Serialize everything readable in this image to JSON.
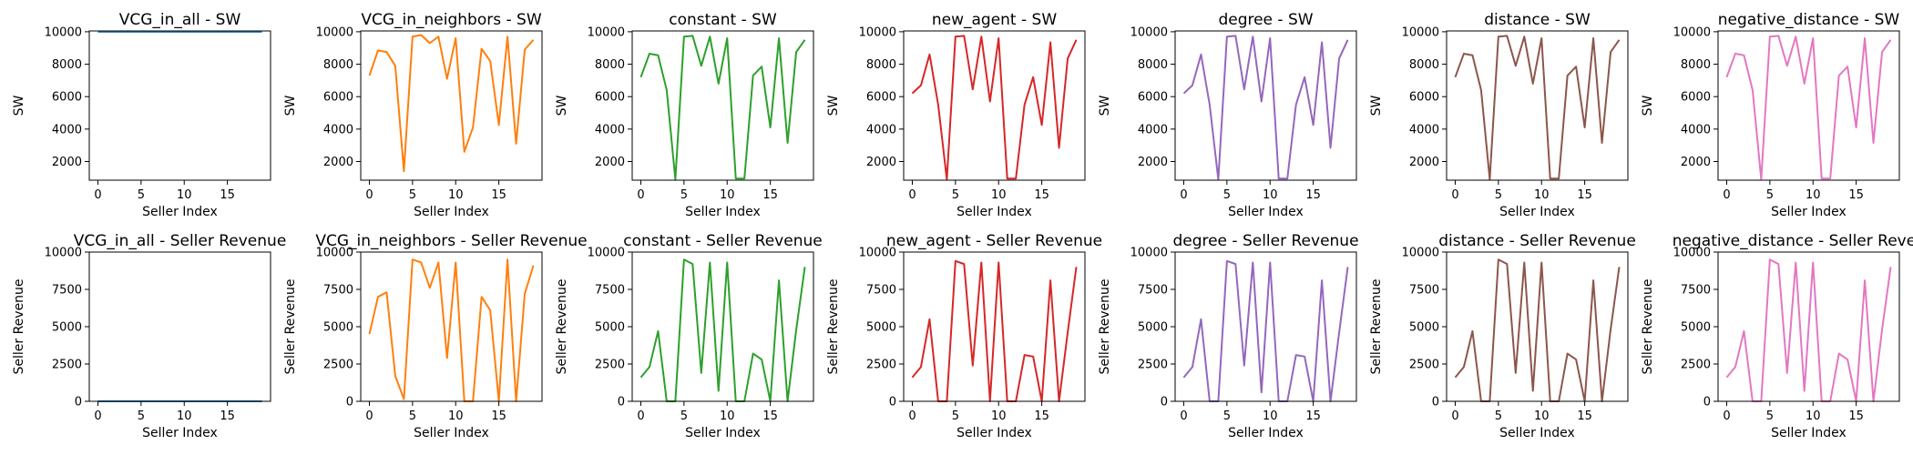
{
  "chart_data": [
    {
      "type": "line",
      "title": "VCG_in_all - SW",
      "xlabel": "Seller Index",
      "ylabel": "SW",
      "xlim": [
        -1,
        20
      ],
      "ylim": [
        850,
        10050
      ],
      "xticks": [
        0,
        5,
        10,
        15
      ],
      "yticks": [
        2000,
        4000,
        6000,
        8000,
        10000
      ],
      "color": "#1f77b4",
      "x": [
        0,
        1,
        2,
        3,
        4,
        5,
        6,
        7,
        8,
        9,
        10,
        11,
        12,
        13,
        14,
        15,
        16,
        17,
        18,
        19
      ],
      "values": [
        10000,
        10000,
        10000,
        10000,
        10000,
        10000,
        10000,
        10000,
        10000,
        10000,
        10000,
        10000,
        10000,
        10000,
        10000,
        10000,
        10000,
        10000,
        10000,
        10000
      ]
    },
    {
      "type": "line",
      "title": "VCG_in_neighbors - SW",
      "xlabel": "Seller Index",
      "ylabel": "SW",
      "xlim": [
        -1,
        20
      ],
      "ylim": [
        850,
        10050
      ],
      "xticks": [
        0,
        5,
        10,
        15
      ],
      "yticks": [
        2000,
        4000,
        6000,
        8000,
        10000
      ],
      "color": "#ff7f0e",
      "x": [
        0,
        1,
        2,
        3,
        4,
        5,
        6,
        7,
        8,
        9,
        10,
        11,
        12,
        13,
        14,
        15,
        16,
        17,
        18,
        19
      ],
      "values": [
        7300,
        8850,
        8750,
        7900,
        1400,
        9700,
        9800,
        9300,
        9700,
        7100,
        9600,
        2600,
        4100,
        8950,
        8200,
        4250,
        9700,
        3100,
        8900,
        9500
      ]
    },
    {
      "type": "line",
      "title": "constant - SW",
      "xlabel": "Seller Index",
      "ylabel": "SW",
      "xlim": [
        -1,
        20
      ],
      "ylim": [
        850,
        10050
      ],
      "xticks": [
        0,
        5,
        10,
        15
      ],
      "yticks": [
        2000,
        4000,
        6000,
        8000,
        10000
      ],
      "color": "#2ca02c",
      "x": [
        0,
        1,
        2,
        3,
        4,
        5,
        6,
        7,
        8,
        9,
        10,
        11,
        12,
        13,
        14,
        15,
        16,
        17,
        18,
        19
      ],
      "values": [
        7200,
        8650,
        8550,
        6400,
        900,
        9700,
        9750,
        7900,
        9700,
        6800,
        9600,
        950,
        950,
        7300,
        7850,
        4100,
        9600,
        3150,
        8750,
        9500
      ]
    },
    {
      "type": "line",
      "title": "new_agent - SW",
      "xlabel": "Seller Index",
      "ylabel": "SW",
      "xlim": [
        -1,
        20
      ],
      "ylim": [
        850,
        10050
      ],
      "xticks": [
        0,
        5,
        10,
        15
      ],
      "yticks": [
        2000,
        4000,
        6000,
        8000,
        10000
      ],
      "color": "#d62728",
      "x": [
        0,
        1,
        2,
        3,
        4,
        5,
        6,
        7,
        8,
        9,
        10,
        11,
        12,
        13,
        14,
        15,
        16,
        17,
        18,
        19
      ],
      "values": [
        6200,
        6700,
        8600,
        5500,
        900,
        9700,
        9750,
        6450,
        9700,
        5700,
        9600,
        950,
        950,
        5500,
        7200,
        4250,
        9350,
        2850,
        8350,
        9500
      ]
    },
    {
      "type": "line",
      "title": "degree - SW",
      "xlabel": "Seller Index",
      "ylabel": "SW",
      "xlim": [
        -1,
        20
      ],
      "ylim": [
        850,
        10050
      ],
      "xticks": [
        0,
        5,
        10,
        15
      ],
      "yticks": [
        2000,
        4000,
        6000,
        8000,
        10000
      ],
      "color": "#9467bd",
      "x": [
        0,
        1,
        2,
        3,
        4,
        5,
        6,
        7,
        8,
        9,
        10,
        11,
        12,
        13,
        14,
        15,
        16,
        17,
        18,
        19
      ],
      "values": [
        6200,
        6700,
        8600,
        5500,
        900,
        9700,
        9750,
        6450,
        9700,
        5700,
        9600,
        950,
        950,
        5500,
        7200,
        4250,
        9350,
        2850,
        8350,
        9500
      ]
    },
    {
      "type": "line",
      "title": "distance - SW",
      "xlabel": "Seller Index",
      "ylabel": "SW",
      "xlim": [
        -1,
        20
      ],
      "ylim": [
        850,
        10050
      ],
      "xticks": [
        0,
        5,
        10,
        15
      ],
      "yticks": [
        2000,
        4000,
        6000,
        8000,
        10000
      ],
      "color": "#8c564b",
      "x": [
        0,
        1,
        2,
        3,
        4,
        5,
        6,
        7,
        8,
        9,
        10,
        11,
        12,
        13,
        14,
        15,
        16,
        17,
        18,
        19
      ],
      "values": [
        7200,
        8650,
        8550,
        6400,
        900,
        9700,
        9750,
        7900,
        9700,
        6800,
        9600,
        950,
        950,
        7300,
        7850,
        4100,
        9600,
        3150,
        8750,
        9500
      ]
    },
    {
      "type": "line",
      "title": "negative_distance - SW",
      "xlabel": "Seller Index",
      "ylabel": "SW",
      "xlim": [
        -1,
        20
      ],
      "ylim": [
        850,
        10050
      ],
      "xticks": [
        0,
        5,
        10,
        15
      ],
      "yticks": [
        2000,
        4000,
        6000,
        8000,
        10000
      ],
      "color": "#e377c2",
      "x": [
        0,
        1,
        2,
        3,
        4,
        5,
        6,
        7,
        8,
        9,
        10,
        11,
        12,
        13,
        14,
        15,
        16,
        17,
        18,
        19
      ],
      "values": [
        7200,
        8650,
        8550,
        6400,
        900,
        9700,
        9750,
        7900,
        9700,
        6800,
        9600,
        950,
        950,
        7300,
        7850,
        4100,
        9600,
        3150,
        8750,
        9500
      ]
    },
    {
      "type": "line",
      "title": "VCG_in_all - Seller Revenue",
      "xlabel": "Seller Index",
      "ylabel": "Seller Revenue",
      "xlim": [
        -1,
        20
      ],
      "ylim": [
        0,
        10000
      ],
      "xticks": [
        0,
        5,
        10,
        15
      ],
      "yticks": [
        0,
        2500,
        5000,
        7500,
        10000
      ],
      "color": "#1f77b4",
      "x": [
        0,
        1,
        2,
        3,
        4,
        5,
        6,
        7,
        8,
        9,
        10,
        11,
        12,
        13,
        14,
        15,
        16,
        17,
        18,
        19
      ],
      "values": [
        0,
        0,
        0,
        0,
        0,
        0,
        0,
        0,
        0,
        0,
        0,
        0,
        0,
        0,
        0,
        0,
        0,
        0,
        0,
        0
      ]
    },
    {
      "type": "line",
      "title": "VCG_in_neighbors - Seller Revenue",
      "xlabel": "Seller Index",
      "ylabel": "Seller Revenue",
      "xlim": [
        -1,
        20
      ],
      "ylim": [
        0,
        10000
      ],
      "xticks": [
        0,
        5,
        10,
        15
      ],
      "yticks": [
        0,
        2500,
        5000,
        7500,
        10000
      ],
      "color": "#ff7f0e",
      "x": [
        0,
        1,
        2,
        3,
        4,
        5,
        6,
        7,
        8,
        9,
        10,
        11,
        12,
        13,
        14,
        15,
        16,
        17,
        18,
        19
      ],
      "values": [
        4500,
        7000,
        7300,
        1700,
        150,
        9500,
        9300,
        7600,
        9300,
        2900,
        9300,
        0,
        0,
        7000,
        6100,
        0,
        9500,
        0,
        7200,
        9100
      ]
    },
    {
      "type": "line",
      "title": "constant - Seller Revenue",
      "xlabel": "Seller Index",
      "ylabel": "Seller Revenue",
      "xlim": [
        -1,
        20
      ],
      "ylim": [
        0,
        10000
      ],
      "xticks": [
        0,
        5,
        10,
        15
      ],
      "yticks": [
        0,
        2500,
        5000,
        7500,
        10000
      ],
      "color": "#2ca02c",
      "x": [
        0,
        1,
        2,
        3,
        4,
        5,
        6,
        7,
        8,
        9,
        10,
        11,
        12,
        13,
        14,
        15,
        16,
        17,
        18,
        19
      ],
      "values": [
        1600,
        2300,
        4700,
        0,
        0,
        9500,
        9200,
        1900,
        9300,
        700,
        9300,
        0,
        0,
        3200,
        2800,
        0,
        8100,
        0,
        4800,
        9000
      ]
    },
    {
      "type": "line",
      "title": "new_agent - Seller Revenue",
      "xlabel": "Seller Index",
      "ylabel": "Seller Revenue",
      "xlim": [
        -1,
        20
      ],
      "ylim": [
        0,
        10000
      ],
      "xticks": [
        0,
        5,
        10,
        15
      ],
      "yticks": [
        0,
        2500,
        5000,
        7500,
        10000
      ],
      "color": "#d62728",
      "x": [
        0,
        1,
        2,
        3,
        4,
        5,
        6,
        7,
        8,
        9,
        10,
        11,
        12,
        13,
        14,
        15,
        16,
        17,
        18,
        19
      ],
      "values": [
        1600,
        2300,
        5500,
        0,
        0,
        9400,
        9200,
        2400,
        9300,
        0,
        9300,
        0,
        0,
        3100,
        3000,
        0,
        8100,
        0,
        4600,
        9000
      ]
    },
    {
      "type": "line",
      "title": "degree - Seller Revenue",
      "xlabel": "Seller Index",
      "ylabel": "Seller Revenue",
      "xlim": [
        -1,
        20
      ],
      "ylim": [
        0,
        10000
      ],
      "xticks": [
        0,
        5,
        10,
        15
      ],
      "yticks": [
        0,
        2500,
        5000,
        7500,
        10000
      ],
      "color": "#9467bd",
      "x": [
        0,
        1,
        2,
        3,
        4,
        5,
        6,
        7,
        8,
        9,
        10,
        11,
        12,
        13,
        14,
        15,
        16,
        17,
        18,
        19
      ],
      "values": [
        1600,
        2300,
        5500,
        0,
        0,
        9400,
        9200,
        2400,
        9300,
        600,
        9300,
        0,
        0,
        3100,
        3000,
        0,
        8100,
        0,
        4600,
        9000
      ]
    },
    {
      "type": "line",
      "title": "distance - Seller Revenue",
      "xlabel": "Seller Index",
      "ylabel": "Seller Revenue",
      "xlim": [
        -1,
        20
      ],
      "ylim": [
        0,
        10000
      ],
      "xticks": [
        0,
        5,
        10,
        15
      ],
      "yticks": [
        0,
        2500,
        5000,
        7500,
        10000
      ],
      "color": "#8c564b",
      "x": [
        0,
        1,
        2,
        3,
        4,
        5,
        6,
        7,
        8,
        9,
        10,
        11,
        12,
        13,
        14,
        15,
        16,
        17,
        18,
        19
      ],
      "values": [
        1600,
        2300,
        4700,
        0,
        0,
        9500,
        9200,
        1900,
        9300,
        700,
        9300,
        0,
        0,
        3200,
        2800,
        0,
        8100,
        0,
        4800,
        9000
      ]
    },
    {
      "type": "line",
      "title": "negative_distance - Seller Revenue",
      "xlabel": "Seller Index",
      "ylabel": "Seller Revenue",
      "xlim": [
        -1,
        20
      ],
      "ylim": [
        0,
        10000
      ],
      "xticks": [
        0,
        5,
        10,
        15
      ],
      "yticks": [
        0,
        2500,
        5000,
        7500,
        10000
      ],
      "color": "#e377c2",
      "x": [
        0,
        1,
        2,
        3,
        4,
        5,
        6,
        7,
        8,
        9,
        10,
        11,
        12,
        13,
        14,
        15,
        16,
        17,
        18,
        19
      ],
      "values": [
        1600,
        2300,
        4700,
        0,
        0,
        9500,
        9200,
        1900,
        9300,
        700,
        9300,
        0,
        0,
        3200,
        2800,
        0,
        8100,
        0,
        4800,
        9000
      ]
    }
  ]
}
